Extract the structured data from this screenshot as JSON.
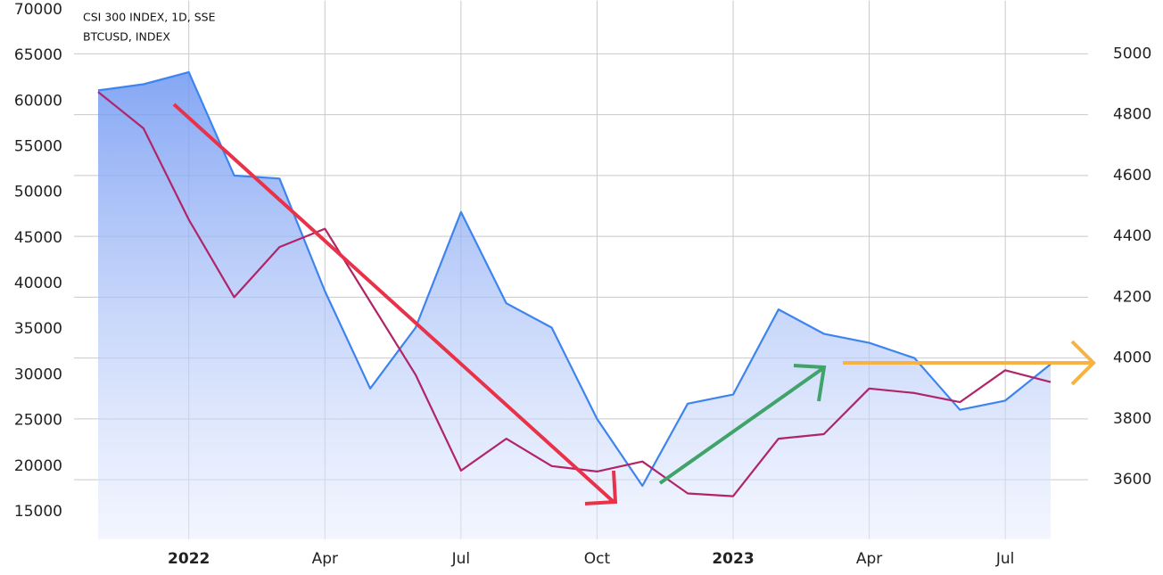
{
  "chart_data": {
    "type": "line",
    "legend": [
      "CSI 300 INDEX, 1D, SSE",
      "BTCUSD, INDEX"
    ],
    "x": [
      "2021-11",
      "2021-12",
      "2022-01",
      "2022-02",
      "2022-03",
      "2022-04",
      "2022-05",
      "2022-06",
      "2022-07",
      "2022-08",
      "2022-09",
      "2022-10",
      "2022-11",
      "2022-12",
      "2023-01",
      "2023-02",
      "2023-03",
      "2023-04",
      "2023-05",
      "2023-06",
      "2023-07",
      "2023-08"
    ],
    "xlim": [
      "2021-11",
      "2023-08"
    ],
    "xticks": [
      {
        "value": "2022-01",
        "label": "2022"
      },
      {
        "value": "2022-04",
        "label": "Apr"
      },
      {
        "value": "2022-07",
        "label": "Jul"
      },
      {
        "value": "2022-10",
        "label": "Oct"
      },
      {
        "value": "2023-01",
        "label": "2023"
      },
      {
        "value": "2023-04",
        "label": "Apr"
      },
      {
        "value": "2023-07",
        "label": "Jul"
      }
    ],
    "ylim": [
      12000,
      71000
    ],
    "yticks": [
      15000,
      20000,
      25000,
      30000,
      35000,
      40000,
      45000,
      50000,
      55000,
      60000,
      65000,
      70000
    ],
    "y2lim": [
      3405,
      5175
    ],
    "y2ticks": [
      3600,
      3800,
      4000,
      4200,
      4400,
      4600,
      4800,
      5000
    ],
    "grid": true,
    "series": [
      {
        "name": "CSI 300 INDEX",
        "color": "#3d84ef",
        "axis": "y2",
        "area": true,
        "values": [
          4880,
          4900,
          4940,
          4600,
          4590,
          4220,
          3900,
          4100,
          4480,
          4180,
          4100,
          3800,
          3580,
          3850,
          3880,
          4160,
          4080,
          4050,
          4000,
          3830,
          3860,
          3980
        ]
      },
      {
        "name": "BTCUSD",
        "color": "#b0246a",
        "values": [
          61000,
          57000,
          47000,
          38500,
          44000,
          46000,
          38000,
          30000,
          19500,
          23000,
          20000,
          19400,
          20500,
          17000,
          16700,
          23000,
          23500,
          28500,
          28000,
          27000,
          30500,
          29200
        ]
      }
    ]
  }
}
